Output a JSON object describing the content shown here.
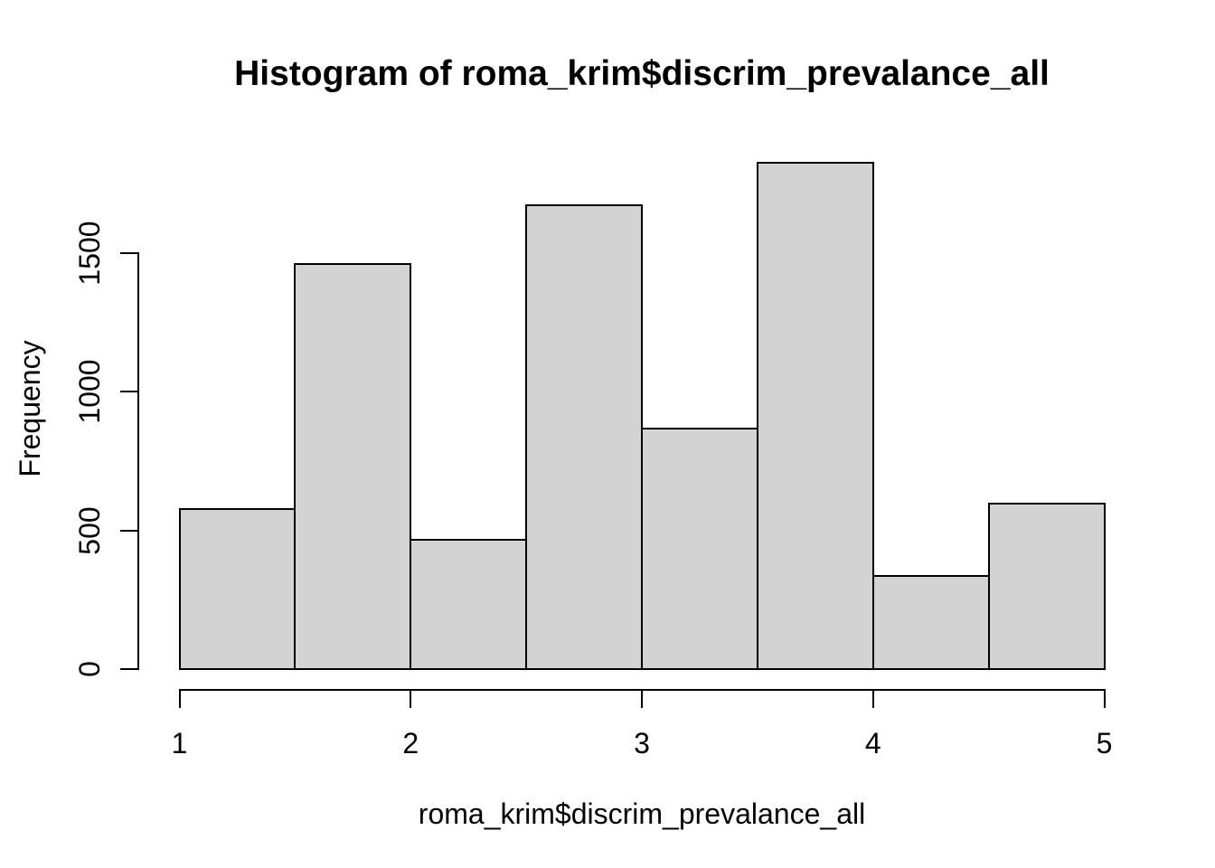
{
  "chart_data": {
    "type": "bar",
    "subtype": "histogram",
    "title": "Histogram of roma_krim$discrim_prevalance_all",
    "xlabel": "roma_krim$discrim_prevalance_all",
    "ylabel": "Frequency",
    "bin_edges": [
      1,
      1.5,
      2,
      2.5,
      3,
      3.5,
      4,
      4.5,
      5
    ],
    "counts": [
      580,
      1465,
      470,
      1675,
      870,
      1830,
      340,
      600
    ],
    "xlim": [
      1,
      5
    ],
    "ylim": [
      0,
      1500
    ],
    "x_ticks": [
      "1",
      "2",
      "3",
      "4",
      "5"
    ],
    "x_tick_values": [
      1,
      2,
      3,
      4,
      5
    ],
    "y_ticks": [
      "0",
      "500",
      "1000",
      "1500"
    ],
    "y_tick_values": [
      0,
      500,
      1000,
      1500
    ],
    "bar_fill": "#d3d3d3",
    "bar_border": "#000000",
    "background": "#ffffff",
    "grid": "off",
    "legend": "none"
  }
}
